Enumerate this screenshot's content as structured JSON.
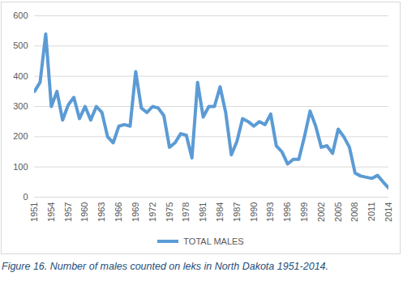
{
  "chart_data": {
    "type": "line",
    "caption": "Figure 16. Number of males counted on leks in North Dakota 1951-2014.",
    "x": [
      1951,
      1952,
      1953,
      1954,
      1955,
      1956,
      1957,
      1958,
      1959,
      1960,
      1961,
      1962,
      1963,
      1964,
      1965,
      1966,
      1967,
      1968,
      1969,
      1970,
      1971,
      1972,
      1973,
      1974,
      1975,
      1976,
      1977,
      1978,
      1979,
      1980,
      1981,
      1982,
      1983,
      1984,
      1985,
      1986,
      1987,
      1988,
      1989,
      1990,
      1991,
      1992,
      1993,
      1994,
      1995,
      1996,
      1997,
      1998,
      1999,
      2000,
      2001,
      2002,
      2003,
      2004,
      2005,
      2006,
      2007,
      2008,
      2009,
      2010,
      2011,
      2012,
      2013,
      2014
    ],
    "series": [
      {
        "name": "TOTAL MALES",
        "color": "#5b9bd5",
        "values": [
          350,
          380,
          540,
          300,
          350,
          255,
          305,
          330,
          260,
          300,
          255,
          300,
          280,
          200,
          180,
          235,
          240,
          235,
          415,
          295,
          280,
          300,
          295,
          270,
          165,
          180,
          210,
          205,
          130,
          380,
          265,
          300,
          300,
          365,
          280,
          140,
          185,
          260,
          250,
          235,
          250,
          240,
          275,
          170,
          150,
          110,
          125,
          125,
          200,
          285,
          235,
          165,
          170,
          145,
          225,
          200,
          165,
          80,
          70,
          66,
          62,
          72,
          50,
          30
        ]
      }
    ],
    "xlim": [
      1951,
      2014
    ],
    "xticks": [
      1951,
      1954,
      1957,
      1960,
      1963,
      1966,
      1969,
      1972,
      1975,
      1978,
      1981,
      1984,
      1987,
      1990,
      1993,
      1996,
      1999,
      2002,
      2005,
      2008,
      2011,
      2014
    ],
    "ylim": [
      0,
      600
    ],
    "yticks": [
      0,
      100,
      200,
      300,
      400,
      500,
      600
    ],
    "grid": true,
    "legend": "bottom"
  }
}
